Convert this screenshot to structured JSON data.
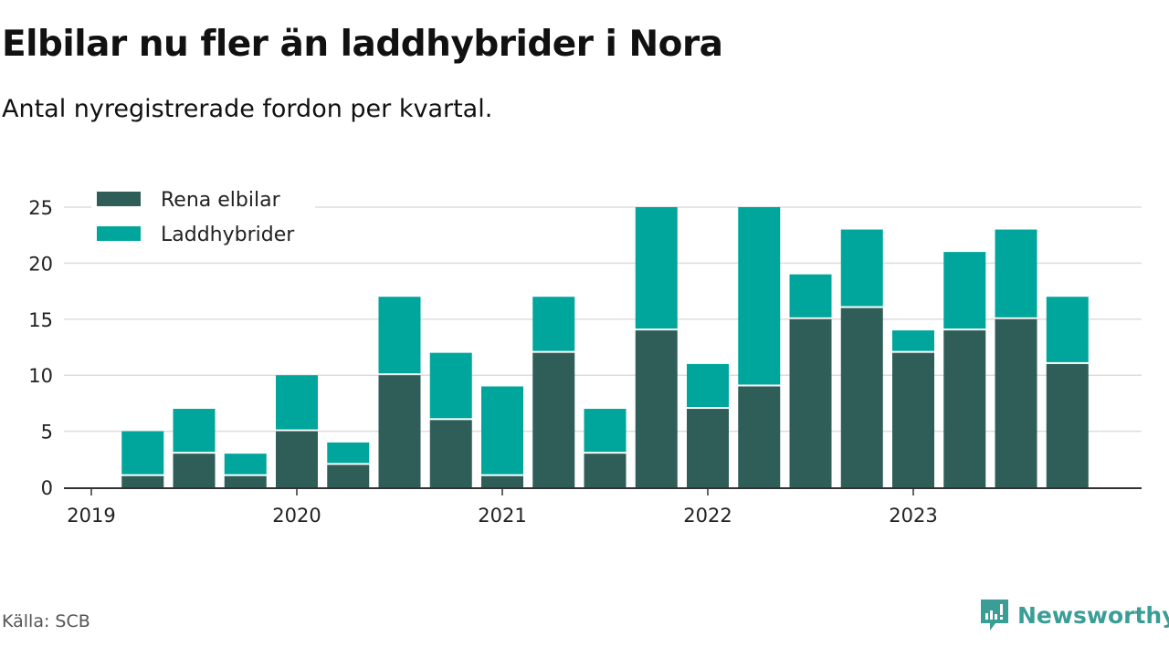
{
  "title": "Elbilar nu fler än laddhybrider i Nora",
  "subtitle": "Antal nyregistrerade fordon per kvartal.",
  "source": "Källa: SCB",
  "logo": "Newsworthy",
  "colors": {
    "elbilar": "#2f5d58",
    "laddhybrider": "#00a59b",
    "grid": "#dddddd",
    "axis": "#333333"
  },
  "chart_data": {
    "type": "bar",
    "stacked": true,
    "categories": [
      "2019 Q1",
      "2019 Q2",
      "2019 Q3",
      "2019 Q4",
      "2020 Q1",
      "2020 Q2",
      "2020 Q3",
      "2020 Q4",
      "2021 Q1",
      "2021 Q2",
      "2021 Q3",
      "2021 Q4",
      "2022 Q1",
      "2022 Q2",
      "2022 Q3",
      "2022 Q4",
      "2023 Q1",
      "2023 Q2",
      "2023 Q3",
      "2023 Q4"
    ],
    "series": [
      {
        "name": "Rena elbilar",
        "values": [
          0,
          1,
          3,
          1,
          5,
          2,
          10,
          6,
          1,
          12,
          3,
          14,
          7,
          9,
          15,
          16,
          12,
          14,
          15,
          11
        ]
      },
      {
        "name": "Laddhybrider",
        "values": [
          0,
          4,
          4,
          2,
          5,
          2,
          7,
          6,
          8,
          5,
          4,
          11,
          4,
          16,
          4,
          7,
          2,
          7,
          8,
          6
        ]
      }
    ],
    "x_ticks": [
      "2019",
      "2020",
      "2021",
      "2022",
      "2023"
    ],
    "y_ticks": [
      0,
      5,
      10,
      15,
      20,
      25
    ],
    "ylim": [
      0,
      25
    ],
    "xlabel": "",
    "ylabel": "",
    "grid": true,
    "legend_position": "top-left"
  }
}
